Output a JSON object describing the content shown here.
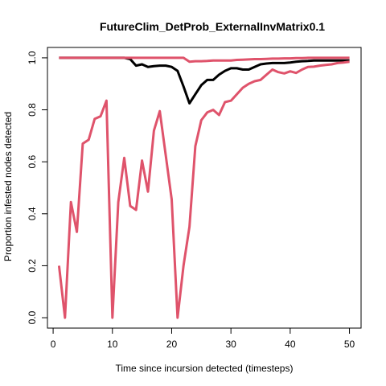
{
  "chart_data": {
    "type": "line",
    "title": "FutureClim_DetProb_ExternalInvMatrix0.1",
    "xlabel": "Time since incursion detected (timesteps)",
    "ylabel": "Proportion infested nodes detected",
    "xlim": [
      -0.96,
      51.96
    ],
    "ylim": [
      -0.04,
      1.04
    ],
    "xticks": [
      0,
      10,
      20,
      30,
      40,
      50
    ],
    "yticks": [
      0.0,
      0.2,
      0.4,
      0.6,
      0.8,
      1.0
    ],
    "xtick_labels": [
      "0",
      "10",
      "20",
      "30",
      "40",
      "50"
    ],
    "ytick_labels": [
      "0.0",
      "0.2",
      "0.4",
      "0.6",
      "0.8",
      "1.0"
    ],
    "grid": false,
    "legend": "none",
    "series": [
      {
        "color": "#000000",
        "width": 3,
        "x": [
          1,
          2,
          3,
          4,
          5,
          6,
          7,
          8,
          9,
          10,
          11,
          12,
          13,
          14,
          15,
          16,
          17,
          18,
          19,
          20,
          21,
          22,
          23,
          24,
          25,
          26,
          27,
          28,
          29,
          30,
          31,
          32,
          33,
          34,
          35,
          36,
          37,
          38,
          39,
          40,
          41,
          42,
          43,
          44,
          45,
          46,
          47,
          48,
          49,
          50
        ],
        "y": [
          1.0,
          1.0,
          1.0,
          1.0,
          1.0,
          1.0,
          1.0,
          1.0,
          1.0,
          1.0,
          1.0,
          1.0,
          0.995,
          0.97,
          0.975,
          0.965,
          0.968,
          0.97,
          0.97,
          0.965,
          0.95,
          0.89,
          0.825,
          0.86,
          0.895,
          0.915,
          0.915,
          0.935,
          0.95,
          0.96,
          0.96,
          0.955,
          0.955,
          0.965,
          0.975,
          0.978,
          0.98,
          0.98,
          0.98,
          0.982,
          0.985,
          0.987,
          0.988,
          0.99,
          0.99,
          0.99,
          0.99,
          0.99,
          0.99,
          0.99
        ]
      },
      {
        "color": "#DF536B",
        "width": 3,
        "x": [
          1,
          2,
          3,
          4,
          5,
          6,
          7,
          8,
          9,
          10,
          11,
          12,
          13,
          14,
          15,
          16,
          17,
          18,
          19,
          20,
          21,
          22,
          23,
          24,
          25,
          26,
          27,
          28,
          29,
          30,
          31,
          32,
          33,
          34,
          35,
          36,
          37,
          38,
          39,
          40,
          41,
          42,
          43,
          44,
          45,
          46,
          47,
          48,
          49,
          50
        ],
        "y": [
          1.0,
          1.0,
          1.0,
          1.0,
          1.0,
          1.0,
          1.0,
          1.0,
          1.0,
          1.0,
          1.0,
          1.0,
          1.0,
          1.0,
          1.0,
          1.0,
          1.0,
          1.0,
          1.0,
          1.0,
          1.0,
          1.0,
          0.985,
          0.987,
          0.987,
          0.988,
          0.99,
          0.99,
          0.99,
          0.99,
          0.992,
          0.993,
          0.994,
          0.995,
          0.995,
          0.996,
          0.997,
          0.997,
          0.998,
          0.998,
          0.999,
          0.999,
          1.0,
          1.0,
          1.0,
          1.0,
          1.0,
          1.0,
          1.0,
          1.0
        ]
      },
      {
        "color": "#DF536B",
        "width": 3,
        "x": [
          1,
          2,
          3,
          4,
          5,
          6,
          7,
          8,
          9,
          10,
          11,
          12,
          13,
          14,
          15,
          16,
          17,
          18,
          19,
          20,
          21,
          22,
          23,
          24,
          25,
          26,
          27,
          28,
          29,
          30,
          31,
          32,
          33,
          34,
          35,
          36,
          37,
          38,
          39,
          40,
          41,
          42,
          43,
          44,
          45,
          46,
          47,
          48,
          49,
          50
        ],
        "y": [
          0.2,
          0.0,
          0.445,
          0.33,
          0.67,
          0.685,
          0.765,
          0.775,
          0.835,
          0.0,
          0.445,
          0.615,
          0.43,
          0.415,
          0.605,
          0.485,
          0.72,
          0.795,
          0.625,
          0.455,
          0.0,
          0.2,
          0.35,
          0.66,
          0.76,
          0.79,
          0.8,
          0.78,
          0.83,
          0.835,
          0.86,
          0.885,
          0.9,
          0.91,
          0.915,
          0.935,
          0.955,
          0.945,
          0.94,
          0.948,
          0.942,
          0.955,
          0.965,
          0.966,
          0.97,
          0.973,
          0.975,
          0.98,
          0.982,
          0.985
        ]
      }
    ]
  }
}
